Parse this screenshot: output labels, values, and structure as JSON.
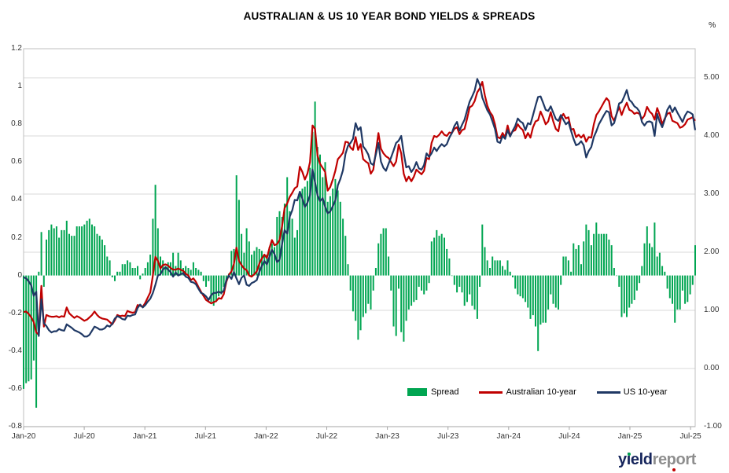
{
  "title": "AUSTRALIAN & US 10 YEAR BOND YIELDS & SPREADS",
  "right_axis_unit": "%",
  "legend": {
    "spread": "Spread",
    "au": "Australian 10-year",
    "us": "US 10-year"
  },
  "logo": {
    "part1": "yield",
    "part2": "report"
  },
  "colors": {
    "spread": "#00A551",
    "au": "#C00000",
    "us": "#1F3864",
    "grid": "#D9D9D9",
    "border": "#BFBFBF",
    "axis_line": "#A6A6A6",
    "axis_text": "#333333",
    "logo_navy": "#16255C",
    "logo_gray": "#8E8E8E",
    "logo_dot_green": "#00A551",
    "logo_dot_red": "#C00000"
  },
  "chart_data": {
    "type": "bar",
    "subtype": "bar-and-line-combo",
    "title": "AUSTRALIAN & US 10 YEAR BOND YIELDS & SPREADS",
    "xlabel": "",
    "ylabel_left": "",
    "ylabel_right": "%",
    "grid": "horizontal-on-right-axis-units",
    "legend_position": "inside-bottom",
    "x_ticks": [
      "Jan-20",
      "Jul-20",
      "Jan-21",
      "Jul-21",
      "Jan-22",
      "Jul-22",
      "Jan-23",
      "Jul-23",
      "Jan-24",
      "Jul-24",
      "Jan-25",
      "Jul-25"
    ],
    "left_axis": {
      "min": -0.8,
      "max": 1.2,
      "step": 0.2,
      "labels": [
        "1.2",
        "1",
        "0.8",
        "0.6",
        "0.4",
        "0.2",
        "0",
        "-0.2",
        "-0.4",
        "-0.6",
        "-0.8"
      ],
      "values": [
        1.2,
        1.0,
        0.8,
        0.6,
        0.4,
        0.2,
        0,
        -0.2,
        -0.4,
        -0.6,
        -0.8
      ]
    },
    "right_axis": {
      "min": -1.0,
      "max": 5.5,
      "step": 1.0,
      "labels": [
        "5.00",
        "4.00",
        "3.00",
        "2.00",
        "1.00",
        "0.00",
        "-1.00"
      ],
      "values": [
        5,
        4,
        3,
        2,
        1,
        0,
        -1
      ]
    },
    "series": [
      {
        "name": "Spread",
        "type": "bar",
        "axis": "left",
        "color": "#00A551",
        "values": [
          -0.6,
          -0.57,
          -0.56,
          -0.55,
          -0.45,
          -0.7,
          0.02,
          0.23,
          -0.06,
          0.19,
          0.24,
          0.27,
          0.25,
          0.26,
          0.2,
          0.24,
          0.24,
          0.29,
          0.22,
          0.21,
          0.21,
          0.26,
          0.26,
          0.26,
          0.27,
          0.29,
          0.3,
          0.27,
          0.26,
          0.22,
          0.21,
          0.19,
          0.16,
          0.1,
          0.08,
          -0.01,
          -0.03,
          0.02,
          0.02,
          0.06,
          0.06,
          0.08,
          0.07,
          0.04,
          0.04,
          0.05,
          -0.02,
          0.01,
          0.04,
          0.07,
          0.11,
          0.3,
          0.48,
          0.25,
          0.1,
          0.08,
          0.05,
          0.07,
          0.07,
          0.12,
          0.05,
          0.12,
          0.08,
          0.04,
          0.05,
          0.04,
          0.03,
          0.07,
          0.04,
          0.03,
          0.02,
          -0.03,
          -0.06,
          -0.03,
          -0.14,
          -0.16,
          -0.14,
          -0.11,
          -0.1,
          -0.06,
          -0.03,
          0.01,
          0.13,
          0.14,
          0.53,
          0.4,
          0.22,
          0.12,
          0.25,
          0.18,
          0.11,
          0.13,
          0.15,
          0.14,
          0.13,
          0.11,
          0.11,
          0.15,
          0.17,
          0.15,
          0.31,
          0.34,
          0.31,
          0.38,
          0.52,
          0.34,
          0.3,
          0.2,
          0.24,
          0.43,
          0.46,
          0.47,
          0.5,
          0.57,
          0.76,
          0.92,
          0.68,
          0.64,
          0.52,
          0.6,
          0.39,
          0.42,
          0.46,
          0.51,
          0.45,
          0.39,
          0.3,
          0.21,
          0.06,
          -0.08,
          -0.19,
          -0.24,
          -0.34,
          -0.29,
          -0.22,
          -0.2,
          -0.15,
          -0.18,
          -0.08,
          0.04,
          0.17,
          0.22,
          0.25,
          0.25,
          0.1,
          -0.08,
          -0.27,
          -0.32,
          -0.07,
          -0.3,
          -0.35,
          -0.24,
          -0.18,
          -0.16,
          -0.14,
          -0.13,
          -0.06,
          -0.08,
          -0.1,
          -0.08,
          -0.04,
          0.18,
          0.2,
          0.24,
          0.21,
          0.22,
          0.2,
          0.14,
          0.09,
          0.0,
          -0.05,
          -0.09,
          -0.06,
          -0.09,
          -0.16,
          -0.14,
          -0.1,
          -0.16,
          -0.18,
          -0.23,
          -0.06,
          0.27,
          0.15,
          0.08,
          0.04,
          0.1,
          0.08,
          0.08,
          0.08,
          0.05,
          0.03,
          0.08,
          0.02,
          -0.01,
          -0.07,
          -0.1,
          -0.11,
          -0.12,
          -0.14,
          -0.17,
          -0.23,
          -0.21,
          -0.27,
          -0.4,
          -0.26,
          -0.25,
          -0.25,
          -0.18,
          -0.1,
          -0.15,
          -0.17,
          -0.18,
          -0.05,
          0.1,
          0.1,
          0.08,
          0.02,
          0.17,
          0.14,
          0.16,
          0.06,
          0.18,
          0.27,
          0.24,
          0.16,
          0.22,
          0.28,
          0.22,
          0.22,
          0.22,
          0.22,
          0.19,
          0.16,
          0.04,
          0.0,
          -0.06,
          -0.22,
          -0.2,
          -0.22,
          -0.17,
          -0.15,
          -0.13,
          -0.08,
          -0.04,
          0.05,
          0.17,
          0.26,
          0.17,
          0.15,
          0.28,
          0.1,
          0.12,
          0.05,
          0.02,
          -0.07,
          -0.12,
          -0.15,
          -0.25,
          -0.18,
          -0.18,
          -0.08,
          -0.15,
          -0.14,
          -0.1,
          -0.05,
          0.16
        ]
      },
      {
        "name": "Australian 10-year",
        "type": "line",
        "axis": "right",
        "color": "#C00000",
        "values": [
          0.97,
          0.98,
          0.94,
          0.88,
          0.8,
          0.62,
          0.58,
          1.42,
          0.72,
          0.92,
          0.9,
          0.89,
          0.89,
          0.9,
          0.88,
          0.9,
          0.89,
          1.05,
          0.95,
          0.91,
          0.87,
          0.9,
          0.88,
          0.85,
          0.82,
          0.84,
          0.88,
          0.92,
          0.98,
          0.92,
          0.88,
          0.86,
          0.85,
          0.84,
          0.8,
          0.76,
          0.83,
          0.92,
          0.9,
          0.91,
          0.9,
          0.99,
          0.97,
          0.96,
          0.97,
          1.09,
          1.08,
          1.06,
          1.13,
          1.22,
          1.31,
          1.6,
          1.92,
          1.85,
          1.72,
          1.78,
          1.79,
          1.77,
          1.73,
          1.7,
          1.7,
          1.72,
          1.7,
          1.68,
          1.63,
          1.6,
          1.52,
          1.55,
          1.49,
          1.4,
          1.32,
          1.25,
          1.18,
          1.15,
          1.12,
          1.14,
          1.16,
          1.21,
          1.2,
          1.28,
          1.49,
          1.61,
          1.67,
          1.8,
          2.08,
          1.85,
          1.78,
          1.72,
          1.69,
          1.6,
          1.58,
          1.62,
          1.67,
          1.8,
          1.89,
          1.96,
          1.9,
          2.07,
          2.21,
          2.12,
          2.14,
          2.21,
          2.45,
          2.76,
          2.84,
          2.95,
          3.02,
          3.1,
          3.13,
          3.47,
          3.38,
          3.25,
          3.35,
          3.55,
          4.18,
          4.12,
          3.66,
          3.52,
          3.45,
          3.38,
          3.06,
          3.12,
          3.25,
          3.4,
          3.6,
          3.65,
          3.71,
          3.9,
          3.89,
          3.8,
          3.76,
          3.98,
          3.76,
          3.86,
          3.6,
          3.56,
          3.53,
          3.35,
          3.42,
          3.72,
          4.05,
          3.78,
          3.7,
          3.65,
          3.62,
          3.55,
          3.48,
          3.56,
          3.85,
          3.7,
          3.35,
          3.22,
          3.3,
          3.22,
          3.3,
          3.42,
          3.38,
          3.34,
          3.4,
          3.62,
          3.6,
          3.88,
          4.0,
          3.98,
          4.02,
          4.08,
          4.02,
          4.0,
          4.06,
          4.05,
          4.12,
          4.15,
          4.03,
          4.1,
          4.12,
          4.3,
          4.49,
          4.52,
          4.6,
          4.75,
          4.82,
          4.93,
          4.7,
          4.52,
          4.41,
          4.35,
          4.2,
          3.98,
          3.96,
          4.05,
          3.98,
          4.18,
          4.01,
          4.08,
          4.1,
          4.2,
          4.14,
          4.1,
          3.96,
          4.05,
          3.97,
          4.15,
          4.25,
          4.27,
          4.42,
          4.32,
          4.2,
          4.25,
          4.41,
          4.25,
          4.12,
          4.08,
          4.31,
          4.38,
          4.3,
          4.32,
          4.11,
          4.12,
          3.98,
          4.02,
          3.97,
          4.02,
          3.9,
          3.98,
          3.97,
          4.2,
          4.36,
          4.42,
          4.5,
          4.58,
          4.65,
          4.6,
          4.34,
          4.26,
          4.38,
          4.5,
          4.36,
          4.48,
          4.57,
          4.45,
          4.43,
          4.38,
          4.4,
          4.38,
          4.29,
          4.35,
          4.5,
          4.42,
          4.38,
          4.28,
          4.48,
          4.36,
          4.2,
          4.3,
          4.38,
          4.4,
          4.26,
          4.24,
          4.22,
          4.14,
          4.16,
          4.2,
          4.28,
          4.3,
          4.32,
          4.26
        ]
      },
      {
        "name": "US 10-year",
        "type": "line",
        "axis": "right",
        "color": "#1F3864",
        "values": [
          1.57,
          1.55,
          1.5,
          1.43,
          1.25,
          1.32,
          0.56,
          1.19,
          0.78,
          0.73,
          0.66,
          0.62,
          0.64,
          0.64,
          0.68,
          0.66,
          0.65,
          0.76,
          0.73,
          0.7,
          0.66,
          0.64,
          0.62,
          0.59,
          0.55,
          0.55,
          0.58,
          0.65,
          0.72,
          0.7,
          0.67,
          0.67,
          0.69,
          0.74,
          0.72,
          0.77,
          0.86,
          0.9,
          0.88,
          0.85,
          0.84,
          0.91,
          0.9,
          0.92,
          0.93,
          1.04,
          1.1,
          1.05,
          1.09,
          1.15,
          1.2,
          1.3,
          1.44,
          1.6,
          1.62,
          1.7,
          1.74,
          1.7,
          1.66,
          1.58,
          1.65,
          1.6,
          1.62,
          1.64,
          1.58,
          1.56,
          1.49,
          1.48,
          1.45,
          1.37,
          1.3,
          1.28,
          1.24,
          1.18,
          1.26,
          1.3,
          1.3,
          1.32,
          1.3,
          1.34,
          1.52,
          1.6,
          1.54,
          1.66,
          1.55,
          1.45,
          1.56,
          1.6,
          1.44,
          1.42,
          1.47,
          1.49,
          1.52,
          1.66,
          1.76,
          1.85,
          1.79,
          1.92,
          2.04,
          1.97,
          1.83,
          1.87,
          2.14,
          2.38,
          2.32,
          2.61,
          2.72,
          2.9,
          2.89,
          3.04,
          2.92,
          2.78,
          2.85,
          2.98,
          3.42,
          3.2,
          2.98,
          2.88,
          2.93,
          2.78,
          2.67,
          2.7,
          2.79,
          2.89,
          3.15,
          3.26,
          3.41,
          3.69,
          3.83,
          3.88,
          3.95,
          4.22,
          4.1,
          4.15,
          3.82,
          3.76,
          3.68,
          3.53,
          3.5,
          3.68,
          3.88,
          3.56,
          3.45,
          3.4,
          3.52,
          3.63,
          3.75,
          3.88,
          3.92,
          4.0,
          3.7,
          3.46,
          3.48,
          3.38,
          3.44,
          3.55,
          3.44,
          3.42,
          3.5,
          3.7,
          3.64,
          3.7,
          3.8,
          3.74,
          3.81,
          3.86,
          3.82,
          3.86,
          3.97,
          4.05,
          4.17,
          4.24,
          4.09,
          4.19,
          4.28,
          4.44,
          4.59,
          4.68,
          4.78,
          4.98,
          4.88,
          4.66,
          4.55,
          4.44,
          4.37,
          4.25,
          4.12,
          3.9,
          3.88,
          4.0,
          3.95,
          4.1,
          3.99,
          4.09,
          4.17,
          4.3,
          4.25,
          4.22,
          4.1,
          4.22,
          4.2,
          4.36,
          4.52,
          4.67,
          4.68,
          4.57,
          4.45,
          4.43,
          4.51,
          4.4,
          4.29,
          4.26,
          4.36,
          4.28,
          4.2,
          4.24,
          4.09,
          3.95,
          3.84,
          3.86,
          3.91,
          3.84,
          3.63,
          3.74,
          3.81,
          3.98,
          4.08,
          4.2,
          4.28,
          4.36,
          4.43,
          4.41,
          4.18,
          4.22,
          4.38,
          4.56,
          4.58,
          4.68,
          4.79,
          4.62,
          4.58,
          4.51,
          4.48,
          4.42,
          4.24,
          4.18,
          4.24,
          4.25,
          4.23,
          4.0,
          4.38,
          4.24,
          4.15,
          4.28,
          4.45,
          4.52,
          4.41,
          4.49,
          4.4,
          4.32,
          4.24,
          4.35,
          4.42,
          4.4,
          4.37,
          4.1
        ]
      }
    ]
  }
}
